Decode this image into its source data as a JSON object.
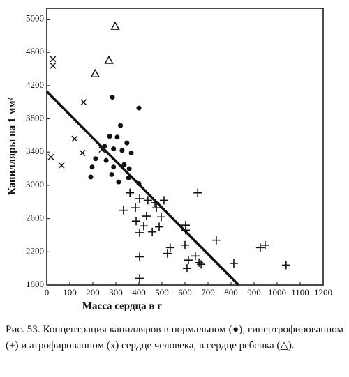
{
  "chart_data": {
    "type": "scatter",
    "ylabel": "Капилляры на 1 мм²",
    "xlabel": "Масса сердца  в  г",
    "caption": "Рис. 53. Концентрация капилляров в нормальном (●), гипертрофированном (+) и атрофированном (x) сердце человека, в сердце ребенка (△).",
    "xlim": [
      0,
      1200
    ],
    "ylim": [
      1800,
      5130
    ],
    "xticks": [
      0,
      100,
      200,
      300,
      400,
      500,
      600,
      700,
      800,
      900,
      1000,
      1100,
      1200
    ],
    "yticks": [
      1800,
      2200,
      2600,
      3000,
      3400,
      3800,
      4200,
      4600,
      5000
    ],
    "series": [
      {
        "marker": "circle",
        "color": "#111",
        "x": [
          285,
          400,
          320,
          273,
          306,
          348,
          251,
          290,
          327,
          367,
          212,
          258,
          336,
          290,
          358,
          197,
          282,
          355,
          400,
          312,
          191
        ],
        "values": [
          4060,
          3930,
          3720,
          3590,
          3580,
          3510,
          3470,
          3440,
          3420,
          3390,
          3320,
          3300,
          3250,
          3220,
          3200,
          3220,
          3130,
          3090,
          3020,
          3040,
          3100
        ]
      },
      {
        "marker": "plus",
        "color": "#111",
        "x": [
          655,
          361,
          403,
          439,
          470,
          509,
          333,
          385,
          476,
          388,
          433,
          497,
          421,
          458,
          488,
          403,
          603,
          603,
          736,
          536,
          524,
          600,
          645,
          615,
          609,
          661,
          670,
          812,
          927,
          948,
          1039,
          403,
          403
        ],
        "values": [
          2910,
          2910,
          2840,
          2820,
          2790,
          2820,
          2700,
          2730,
          2730,
          2570,
          2630,
          2620,
          2510,
          2440,
          2500,
          2430,
          2520,
          2460,
          2340,
          2250,
          2180,
          2280,
          2150,
          2100,
          2000,
          2070,
          2050,
          2060,
          2250,
          2280,
          2040,
          2140,
          1880
        ]
      },
      {
        "marker": "x",
        "color": "#111",
        "x": [
          27,
          27,
          160,
          18,
          64,
          121,
          155,
          239
        ],
        "values": [
          4520,
          4440,
          4000,
          3340,
          3240,
          3560,
          3390,
          3430
        ]
      },
      {
        "marker": "triangle",
        "color": "#111",
        "x": [
          297,
          270,
          210
        ],
        "values": [
          4910,
          4500,
          4340
        ]
      },
      {
        "marker": "line",
        "color": "#111",
        "x": [
          0,
          833
        ],
        "values": [
          4130,
          1800
        ]
      }
    ]
  }
}
